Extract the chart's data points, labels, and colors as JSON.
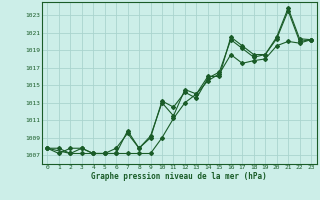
{
  "background_color": "#cceee8",
  "grid_color": "#aad4ce",
  "line_color": "#1a5c28",
  "xlabel": "Graphe pression niveau de la mer (hPa)",
  "ylim": [
    1006.0,
    1024.5
  ],
  "xlim": [
    -0.5,
    23.5
  ],
  "yticks": [
    1007,
    1009,
    1011,
    1013,
    1015,
    1017,
    1019,
    1021,
    1023
  ],
  "xticks": [
    0,
    1,
    2,
    3,
    4,
    5,
    6,
    7,
    8,
    9,
    10,
    11,
    12,
    13,
    14,
    15,
    16,
    17,
    18,
    19,
    20,
    21,
    22,
    23
  ],
  "series1_x": [
    0,
    1,
    2,
    3,
    4,
    5,
    6,
    7,
    8,
    9,
    10,
    11,
    12,
    13,
    14,
    15,
    16,
    17,
    18,
    19,
    20,
    21,
    22,
    23
  ],
  "series1_y": [
    1007.8,
    1007.8,
    1007.2,
    1007.2,
    1007.2,
    1007.2,
    1007.2,
    1007.2,
    1007.2,
    1007.2,
    1009.0,
    1011.2,
    1013.0,
    1014.0,
    1015.5,
    1016.3,
    1018.5,
    1017.5,
    1017.8,
    1018.0,
    1019.5,
    1020.0,
    1019.8,
    1020.2
  ],
  "series2_x": [
    0,
    1,
    2,
    3,
    4,
    5,
    6,
    7,
    8,
    9,
    10,
    11,
    12,
    13,
    14,
    15,
    16,
    17,
    18,
    19,
    20,
    21,
    22,
    23
  ],
  "series2_y": [
    1007.8,
    1007.2,
    1007.8,
    1007.8,
    1007.2,
    1007.2,
    1007.8,
    1009.5,
    1007.8,
    1009.0,
    1013.2,
    1012.5,
    1014.2,
    1013.5,
    1015.8,
    1016.5,
    1020.2,
    1019.2,
    1018.2,
    1018.5,
    1020.3,
    1023.5,
    1020.0,
    1020.2
  ],
  "series3_x": [
    0,
    2,
    3,
    4,
    5,
    6,
    7,
    8,
    9,
    10,
    11,
    12,
    13,
    14,
    15,
    16,
    17,
    18,
    19,
    20,
    21,
    22,
    23
  ],
  "series3_y": [
    1007.8,
    1007.2,
    1007.8,
    1007.2,
    1007.2,
    1007.2,
    1009.8,
    1007.8,
    1009.2,
    1013.0,
    1011.5,
    1014.5,
    1014.0,
    1016.0,
    1016.0,
    1020.5,
    1019.5,
    1018.5,
    1018.5,
    1020.5,
    1023.8,
    1020.3,
    1020.2
  ]
}
